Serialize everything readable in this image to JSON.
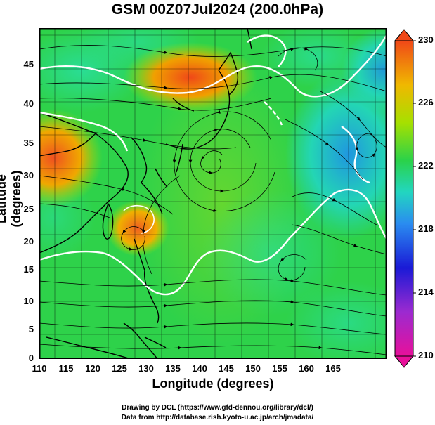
{
  "title": "GSM 00Z07Jul2024 (200.0hPa)",
  "axes": {
    "xlabel": "Longitude (degrees)",
    "ylabel": "Latitude  (degrees)",
    "x_ticks": [
      "110",
      "115",
      "120",
      "125",
      "130",
      "135",
      "140",
      "145",
      "150",
      "155",
      "160",
      "165"
    ],
    "y_ticks": [
      "45",
      "40",
      "35",
      "30",
      "25",
      "20",
      "15",
      "10",
      "5",
      "0"
    ]
  },
  "colorbar": {
    "ticks": [
      "230",
      "226",
      "222",
      "218",
      "214",
      "210"
    ],
    "colors": [
      "#e8109a",
      "#1a1ad6",
      "#2a8cf0",
      "#22d6c0",
      "#2ad24a",
      "#a6e000",
      "#f0b800",
      "#f04818"
    ]
  },
  "credits": {
    "line1": "Drawing by DCL (https://www.gfd-dennou.org/library/dcl/)",
    "line2": "Data from http://database.rish.kyoto-u.ac.jp/arch/jmadata/"
  }
}
